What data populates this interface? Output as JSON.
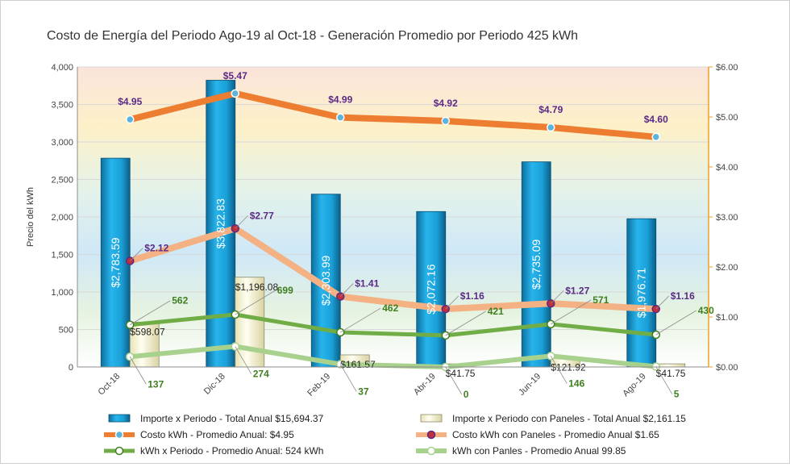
{
  "chart_data": {
    "type": "bar",
    "title": "Costo de Energía del Periodo Ago-19 al Oct-18 - Generación Promedio por Periodo 425 kWh",
    "ylabel": "Precio del kWh",
    "ylim": [
      0,
      4000
    ],
    "y_ticks": [
      "0",
      "500",
      "1,000",
      "1,500",
      "2,000",
      "2,500",
      "3,000",
      "3,500",
      "4,000"
    ],
    "y2lim": [
      0,
      6
    ],
    "y2_ticks": [
      "$0.00",
      "$1.00",
      "$2.00",
      "$3.00",
      "$4.00",
      "$5.00",
      "$6.00"
    ],
    "categories": [
      "Oct-18",
      "Dic-18",
      "Feb-19",
      "Abr-19",
      "Jun-19",
      "Ago-19"
    ],
    "series": [
      {
        "name": "Importe x Periodo - Total Anual $15,694.37",
        "kind": "bar",
        "axis": "left",
        "color": "#1ea3d9",
        "values": [
          2783.59,
          3822.83,
          2303.99,
          2072.16,
          2735.09,
          1976.71
        ],
        "labels": [
          "$2,783.59",
          "$3,822.83",
          "$2,303.99",
          "$2,072.16",
          "$2,735.09",
          "$1,976.71"
        ]
      },
      {
        "name": "Importe x Periodo con Paneles - Total Anual $2,161.15",
        "kind": "bar",
        "axis": "left",
        "color": "#fdfbe0",
        "values": [
          598.07,
          1196.08,
          161.57,
          41.75,
          121.92,
          41.75
        ],
        "labels": [
          "$598.07",
          "$1,196.08",
          "$161.57",
          "$41.75",
          "$121.92",
          "$41.75"
        ]
      },
      {
        "name": "Costo kWh - Promedio Anual: $4.95",
        "kind": "line",
        "axis": "right",
        "color": "#ed7d31",
        "values": [
          4.95,
          5.47,
          4.99,
          4.92,
          4.79,
          4.6
        ],
        "labels": [
          "$4.95",
          "$5.47",
          "$4.99",
          "$4.92",
          "$4.79",
          "$4.60"
        ]
      },
      {
        "name": "Costo kWh con Paneles - Promedio Anual $1.65",
        "kind": "line",
        "axis": "right",
        "color": "#f4b183",
        "values": [
          2.12,
          2.77,
          1.41,
          1.16,
          1.27,
          1.16
        ],
        "labels": [
          "$2.12",
          "$2.77",
          "$1.41",
          "$1.16",
          "$1.27",
          "$1.16"
        ]
      },
      {
        "name": "kWh  x Periodo - Promedio Anual: 524 kWh",
        "kind": "line",
        "axis": "left",
        "color": "#70ad47",
        "values": [
          562,
          699,
          462,
          421,
          571,
          430
        ],
        "labels": [
          "562",
          "699",
          "462",
          "421",
          "571",
          "430"
        ]
      },
      {
        "name": "kWh  con Panles - Promedio Anual 99.85",
        "kind": "line",
        "axis": "left",
        "color": "#a9d18e",
        "values": [
          137,
          274,
          37,
          0,
          146,
          5
        ],
        "labels": [
          "137",
          "274",
          "37",
          "0",
          "146",
          "5"
        ]
      }
    ]
  }
}
